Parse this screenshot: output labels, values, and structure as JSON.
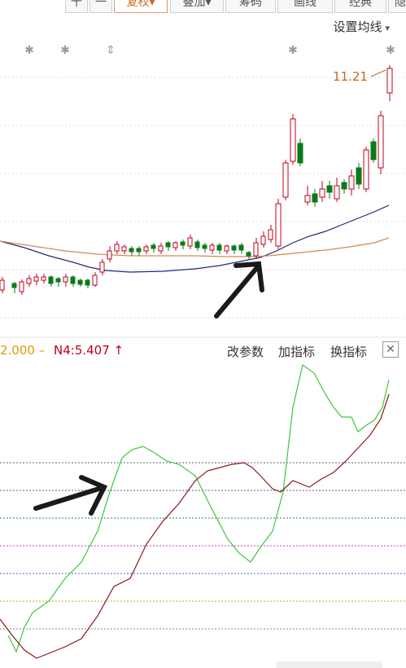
{
  "toolbar": {
    "buttons": [
      {
        "label": "十"
      },
      {
        "label": "一"
      },
      {
        "label": "复权",
        "caret": "▾"
      },
      {
        "label": "叠加",
        "caret": "▾"
      },
      {
        "label": "筹码"
      },
      {
        "label": "画线"
      },
      {
        "label": "经典"
      },
      {
        "label": "隐"
      }
    ],
    "settings_label": "设置均线",
    "settings_caret": "▾"
  },
  "main_chart": {
    "price_label": "11.21",
    "up_color": "#c0001c",
    "down_color": "#0a7a1a",
    "ma_colors": [
      "#1f2a7a",
      "#d48a50"
    ]
  },
  "indicator": {
    "value1": "2.000 –",
    "value2": "N4:5.407 ↑",
    "buttons": [
      "改参数",
      "加指标",
      "换指标"
    ],
    "close": "✕",
    "line_colors": [
      "#3cc83c",
      "#8b1a1a"
    ]
  },
  "icons": [
    "star-icon",
    "updown-arrow-icon",
    "close-icon",
    "caret-down-icon"
  ]
}
